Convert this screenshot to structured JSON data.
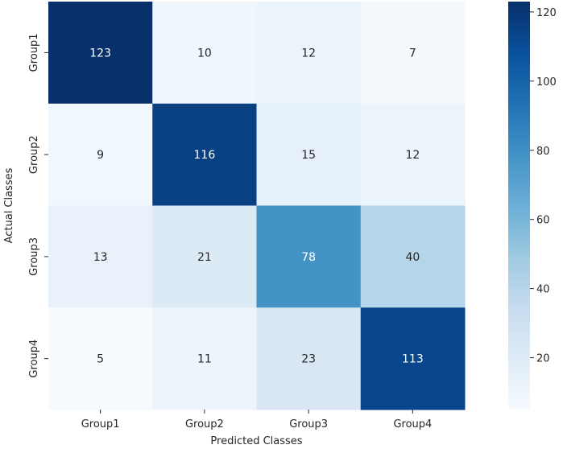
{
  "chart_data": {
    "type": "heatmap",
    "x_categories": [
      "Group1",
      "Group2",
      "Group3",
      "Group4"
    ],
    "y_categories": [
      "Group1",
      "Group2",
      "Group3",
      "Group4"
    ],
    "values": [
      [
        123,
        10,
        12,
        7
      ],
      [
        9,
        116,
        15,
        12
      ],
      [
        13,
        21,
        78,
        40
      ],
      [
        5,
        11,
        23,
        113
      ]
    ],
    "xlabel": "Predicted Classes",
    "ylabel": "Actual Classes",
    "colorbar": {
      "min": 5,
      "max": 123,
      "ticks": [
        20,
        40,
        60,
        80,
        100,
        120
      ],
      "colormap": "Blues"
    },
    "annotations": true
  }
}
